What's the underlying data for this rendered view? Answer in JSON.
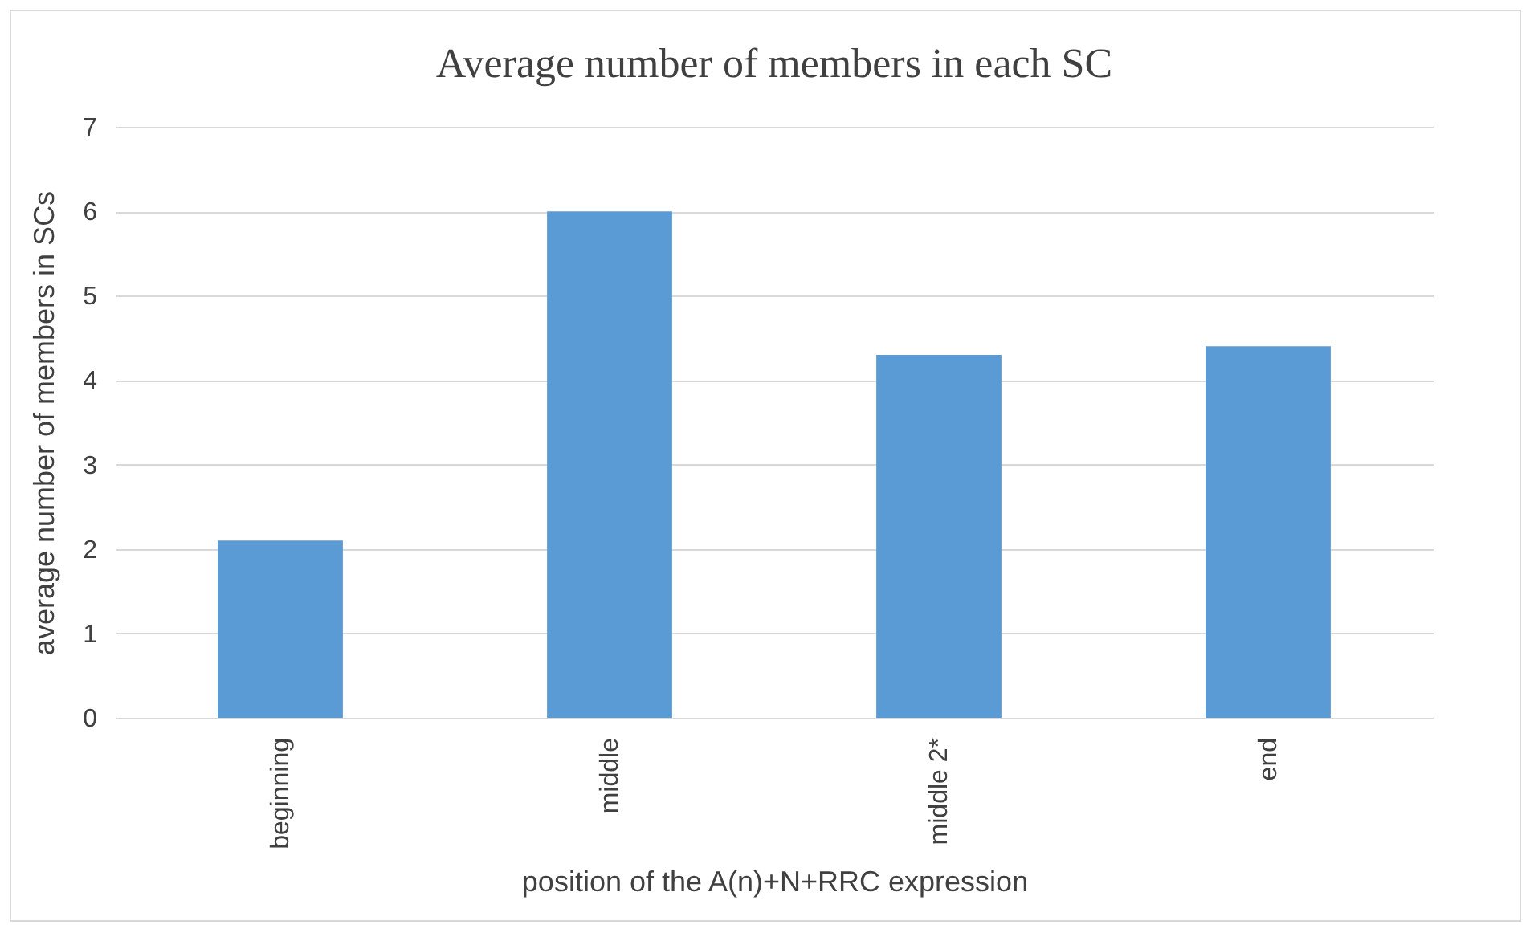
{
  "chart_data": {
    "type": "bar",
    "title": "Average number of members in each SC",
    "xlabel": "position of the A(n)+N+RRC expression",
    "ylabel": "average number of members in SCs",
    "categories": [
      "beginning",
      "middle",
      "middle 2*",
      "end"
    ],
    "values": [
      2.1,
      6.0,
      4.3,
      4.4
    ],
    "color": "#5b9bd5",
    "ylim": [
      0,
      7
    ],
    "yticks": [
      0,
      1,
      2,
      3,
      4,
      5,
      6,
      7
    ],
    "grid": "y"
  }
}
